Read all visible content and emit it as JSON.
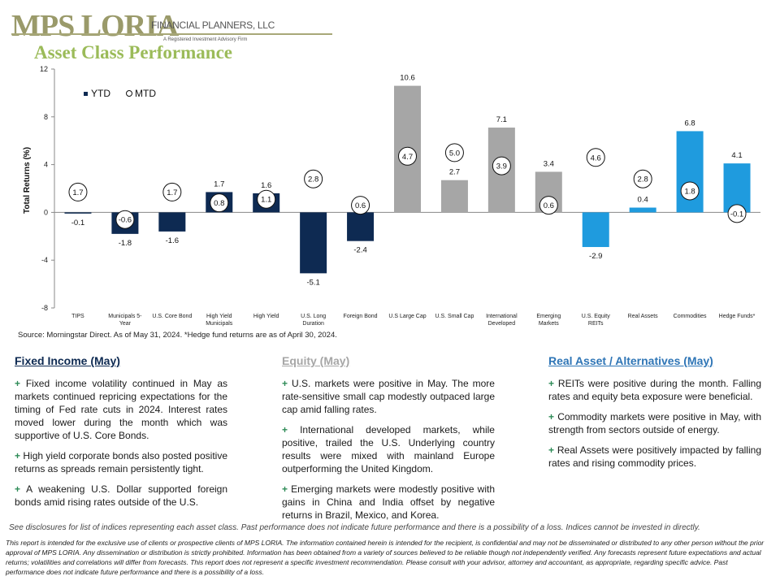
{
  "brand": {
    "logo_text": "MPS LORIA",
    "logo_sub": "FINANCIAL PLANNERS, LLC",
    "logo_tag": "A Registered Investment Advisory Firm"
  },
  "page_title": "Asset Class Performance",
  "chart_data": {
    "type": "bar",
    "ylabel": "Total Returns (%)",
    "ylim": [
      -8,
      12
    ],
    "yticks": [
      -8,
      -4,
      0,
      4,
      8,
      12
    ],
    "categories": [
      "TIPS",
      "Municipals 5-Year",
      "U.S. Core Bond",
      "High Yield Municipals",
      "High Yield",
      "U.S. Long Duration",
      "Foreign Bond",
      "U.S Large Cap",
      "U.S. Small Cap",
      "International Developed",
      "Emerging Markets",
      "U.S. Equity REITs",
      "Real Assets",
      "Commodities",
      "Hedge Funds*"
    ],
    "category_lines": [
      [
        "TIPS"
      ],
      [
        "Municipals 5-",
        "Year"
      ],
      [
        "U.S. Core Bond"
      ],
      [
        "High Yield",
        "Municipals"
      ],
      [
        "High Yield"
      ],
      [
        "U.S. Long",
        "Duration"
      ],
      [
        "Foreign Bond"
      ],
      [
        "U.S Large Cap"
      ],
      [
        "U.S. Small Cap"
      ],
      [
        "International",
        "Developed"
      ],
      [
        "Emerging",
        "Markets"
      ],
      [
        "U.S. Equity",
        "REITs"
      ],
      [
        "Real Assets"
      ],
      [
        "Commodities"
      ],
      [
        "Hedge Funds*"
      ]
    ],
    "groups": [
      "fixed",
      "fixed",
      "fixed",
      "fixed",
      "fixed",
      "fixed",
      "fixed",
      "equity",
      "equity",
      "equity",
      "equity",
      "real",
      "real",
      "real",
      "real"
    ],
    "group_colors": {
      "fixed": "#0e2a52",
      "equity": "#a6a6a6",
      "real": "#1f9bde"
    },
    "series": [
      {
        "name": "YTD",
        "values": [
          -0.1,
          -1.8,
          -1.6,
          1.7,
          1.6,
          -5.1,
          -2.4,
          10.6,
          2.7,
          7.1,
          3.4,
          -2.9,
          0.4,
          6.8,
          4.1
        ]
      },
      {
        "name": "MTD",
        "values": [
          1.7,
          -0.6,
          1.7,
          0.8,
          1.1,
          2.8,
          0.6,
          4.7,
          5.0,
          3.9,
          0.6,
          4.6,
          2.8,
          1.8,
          -0.1
        ]
      }
    ],
    "legend": [
      "YTD",
      "MTD"
    ],
    "legend_position": "top-left",
    "grid": false
  },
  "source_note": "Source: Morningstar Direct. As of May 31, 2024. *Hedge fund returns are as of April 30, 2024.",
  "sections": {
    "fixed_income": {
      "title": "Fixed Income (May)",
      "points": [
        "Fixed income volatility continued in May as markets continued repricing expectations for the timing of Fed rate cuts in 2024. Interest rates moved lower during the month which was supportive of U.S. Core Bonds.",
        "High yield corporate bonds also posted positive returns as spreads remain persistently tight.",
        "A weakening U.S. Dollar supported foreign bonds amid rising rates outside of the U.S."
      ]
    },
    "equity": {
      "title": "Equity (May)",
      "points": [
        "U.S. markets were positive in May. The more rate-sensitive small cap modestly outpaced large cap amid falling rates.",
        "International developed markets, while positive, trailed the U.S. Underlying country results were mixed with mainland Europe outperforming the United Kingdom.",
        "Emerging markets were modestly positive with gains in China and India offset by negative returns in Brazil, Mexico, and Korea."
      ]
    },
    "real_assets": {
      "title": "Real Asset / Alternatives (May)",
      "points": [
        "REITs were positive during the month. Falling rates and equity beta exposure were beneficial.",
        "Commodity markets were positive in May, with strength from sectors outside of energy.",
        "Real Assets were positively impacted by falling rates and rising commodity prices."
      ]
    }
  },
  "bullet_symbol": "+",
  "disclaimer_short": "See disclosures for list of indices representing each asset class. Past performance does not indicate future performance and there is a possibility of a loss. Indices cannot be invested in directly.",
  "disclaimer_long": "This report is intended for the exclusive use of clients or prospective clients of MPS LORIA. The information contained herein is intended for the recipient, is confidential and may not be disseminated or distributed to any other person without the prior approval of MPS LORIA. Any dissemination or distribution is strictly prohibited. Information has been obtained from a variety of sources believed to be reliable though not independently verified. Any forecasts represent future expectations and actual returns; volatilities and correlations will differ from forecasts. This report does not represent a specific investment recommendation. Please consult with your advisor, attorney and accountant, as appropriate, regarding specific advice. Past performance does not indicate future performance and there is a possibility of a loss."
}
